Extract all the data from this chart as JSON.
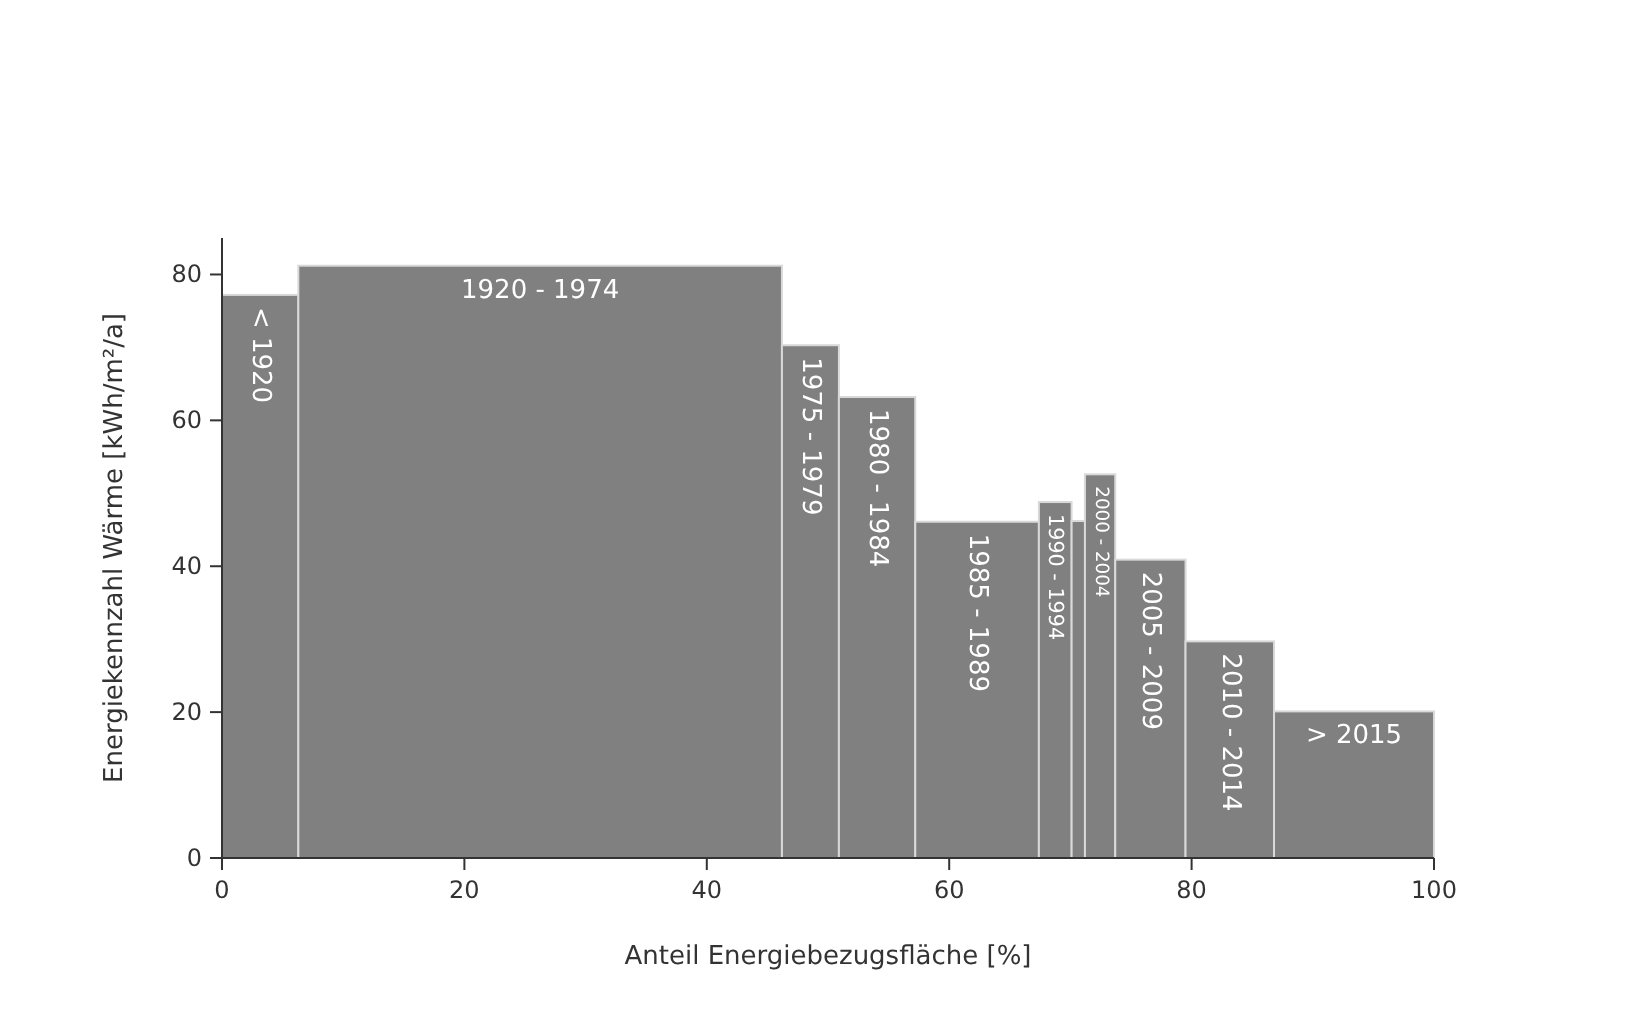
{
  "chart_data": {
    "type": "histogram",
    "xlabel": "Anteil Energiebezugsfläche [%]",
    "ylabel": "Energiekennzahl Wärme [kWh/m²/a]",
    "bins": [
      0,
      6.3,
      46.2,
      50.9,
      57.2,
      67.4,
      70.1,
      71.2,
      73.7,
      79.5,
      86.8,
      100
    ],
    "values": [
      77.2,
      81.2,
      70.3,
      63.2,
      46.1,
      48.8,
      46.2,
      52.6,
      40.9,
      29.7,
      20.1
    ],
    "categories": [
      "< 1920",
      "1920 - 1974",
      "1975 - 1979",
      "1980 - 1984",
      "1985 - 1989",
      "1990 - 1994",
      null,
      "2000 - 2004",
      "2005 - 2009",
      "2010 - 2014",
      "> 2015"
    ],
    "color": "#808080",
    "xlim": [
      0,
      100
    ],
    "xticks": [
      0,
      20,
      40,
      60,
      80,
      100
    ],
    "ylim": [
      0,
      85
    ],
    "yticks": [
      0,
      20,
      40,
      60,
      80
    ]
  }
}
